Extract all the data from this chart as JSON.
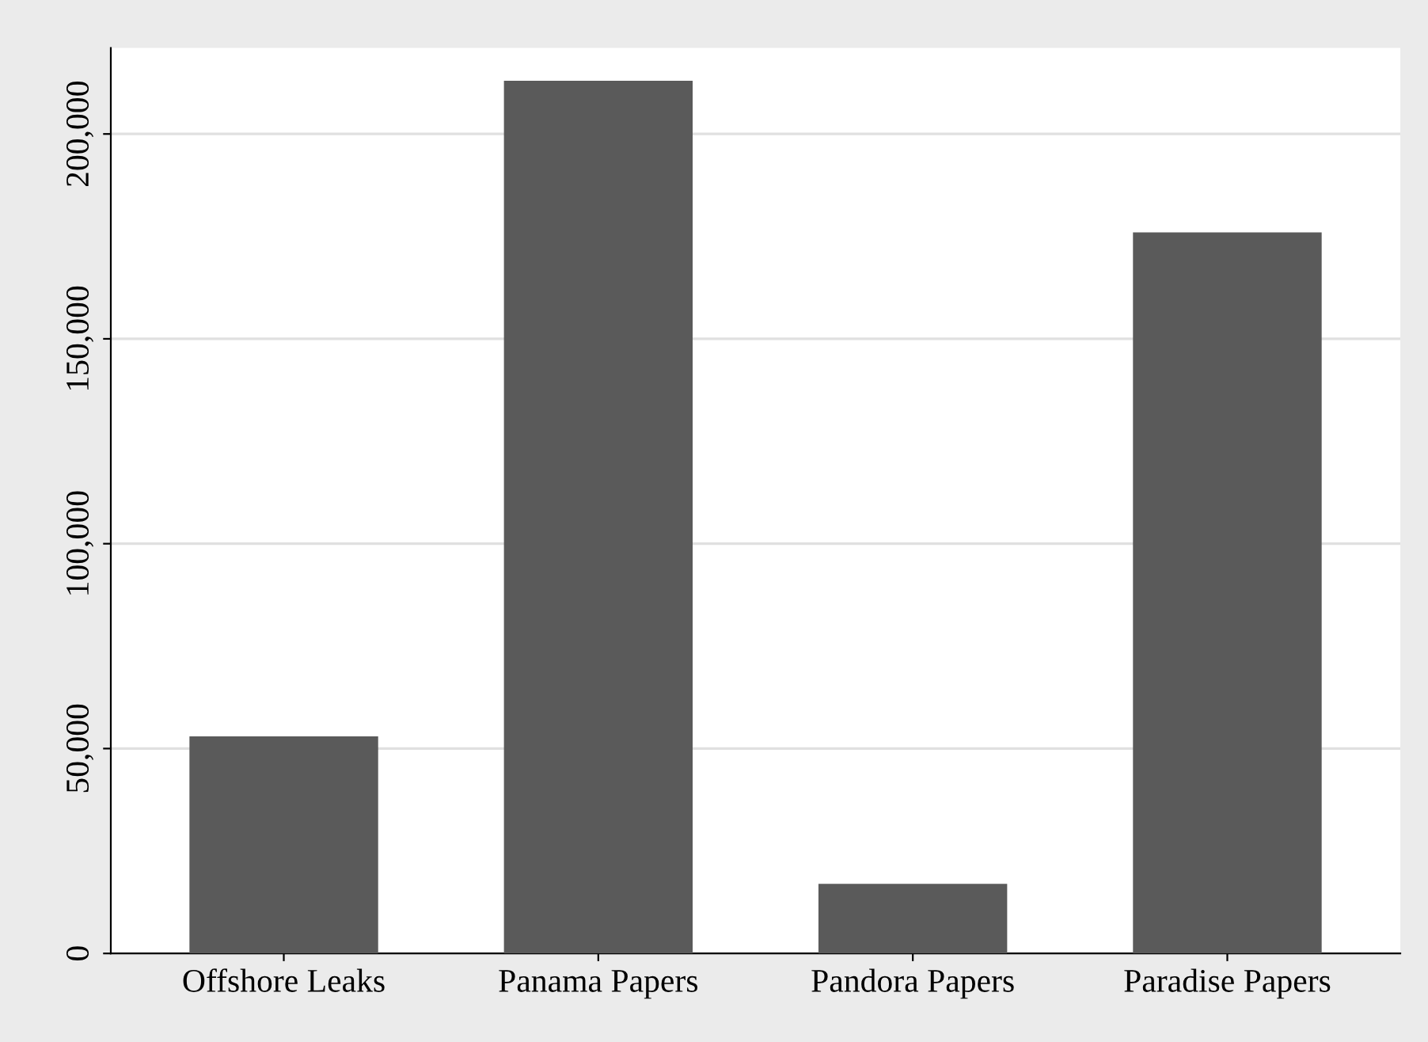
{
  "chart_data": {
    "type": "bar",
    "categories": [
      "Offshore Leaks",
      "Panama Papers",
      "Pandora Papers",
      "Paradise Papers"
    ],
    "values": [
      53000,
      213000,
      17000,
      176000
    ],
    "color": "#5a5a5a",
    "ylim": [
      0,
      221000
    ],
    "yticks": [
      {
        "value": 0,
        "label": "0"
      },
      {
        "value": 50000,
        "label": "50,000"
      },
      {
        "value": 100000,
        "label": "100,000"
      },
      {
        "value": 150000,
        "label": "150,000"
      },
      {
        "value": 200000,
        "label": "200,000"
      }
    ],
    "grid": "y",
    "legend": false
  }
}
